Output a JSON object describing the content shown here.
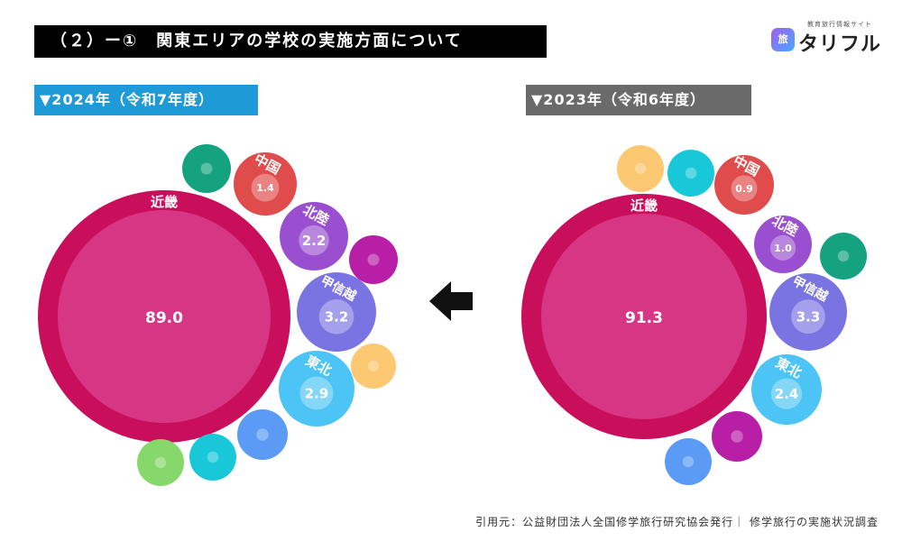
{
  "header": {
    "title": "（２）ー①　関東エリアの学校の実施方面について"
  },
  "logo": {
    "tagline": "教育旅行情報サイト",
    "badge": "旅",
    "name": "タリフル"
  },
  "source": "引用元：公益財団法人全国修学旅行研究協会発行｜ 修学旅行の実施状況調査",
  "chart_data": [
    {
      "type": "bubble",
      "title": "▼2024年（令和7年度）",
      "bubbles": [
        {
          "name": "近畿",
          "value": 89.0,
          "value_label": "89.0",
          "color": "#d63683"
        },
        {
          "name": "中国",
          "value": 1.4,
          "value_label": "1.4",
          "color": "#e04b4b"
        },
        {
          "name": "北陸",
          "value": 2.2,
          "value_label": "2.2",
          "color": "#9a4fd0"
        },
        {
          "name": "甲信越",
          "value": 3.2,
          "value_label": "3.2",
          "color": "#7a74e2"
        },
        {
          "name": "東北",
          "value": 2.9,
          "value_label": "2.9",
          "color": "#4cc4f5"
        },
        {
          "name": "",
          "value": null,
          "value_label": "",
          "color": "#15a37f"
        },
        {
          "name": "",
          "value": null,
          "value_label": "",
          "color": "#b81ea6"
        },
        {
          "name": "",
          "value": null,
          "value_label": "",
          "color": "#fcc872"
        },
        {
          "name": "",
          "value": null,
          "value_label": "",
          "color": "#5b9bf5"
        },
        {
          "name": "",
          "value": null,
          "value_label": "",
          "color": "#18c8d8"
        },
        {
          "name": "",
          "value": null,
          "value_label": "",
          "color": "#86d86a"
        }
      ]
    },
    {
      "type": "bubble",
      "title": "▼2023年（令和6年度）",
      "bubbles": [
        {
          "name": "近畿",
          "value": 91.3,
          "value_label": "91.3",
          "color": "#d63683"
        },
        {
          "name": "中国",
          "value": 0.9,
          "value_label": "0.9",
          "color": "#e04b4b"
        },
        {
          "name": "北陸",
          "value": 1.0,
          "value_label": "1.0",
          "color": "#9a4fd0"
        },
        {
          "name": "甲信越",
          "value": 3.3,
          "value_label": "3.3",
          "color": "#7a74e2"
        },
        {
          "name": "東北",
          "value": 2.4,
          "value_label": "2.4",
          "color": "#4cc4f5"
        },
        {
          "name": "",
          "value": null,
          "value_label": "",
          "color": "#fcc872"
        },
        {
          "name": "",
          "value": null,
          "value_label": "",
          "color": "#18c8d8"
        },
        {
          "name": "",
          "value": null,
          "value_label": "",
          "color": "#15a37f"
        },
        {
          "name": "",
          "value": null,
          "value_label": "",
          "color": "#b81ea6"
        },
        {
          "name": "",
          "value": null,
          "value_label": "",
          "color": "#5b9bf5"
        }
      ]
    }
  ],
  "arrow_icon": "arrow-left-icon"
}
